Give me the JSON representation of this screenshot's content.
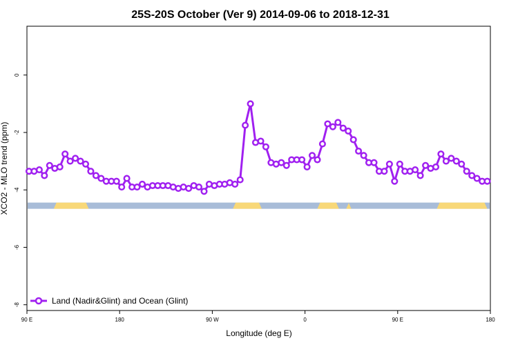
{
  "chart_data": {
    "type": "line",
    "title": "25S-20S October (Ver 9)   2014-09-06 to 2018-12-31",
    "xlabel": "Longitude (deg E)",
    "ylabel": "XCO2 - MLO trend (ppm)",
    "x_tick_labels": [
      "90 E",
      "180",
      "90 W",
      "0",
      "90 E",
      "180"
    ],
    "y_tick_labels": [
      "0",
      "-2",
      "-4",
      "-6",
      "-8"
    ],
    "y_ticks": [
      0,
      -2,
      -4,
      -6,
      -8
    ],
    "x_ticks": [
      90,
      180,
      270,
      360,
      450,
      540
    ],
    "xlim": [
      90,
      540
    ],
    "ylim": [
      -8.2,
      1.7
    ],
    "grid": false,
    "legend_position": "bottom-left",
    "series": [
      {
        "name": "Land (Nadir&Glint) and Ocean (Glint)",
        "color": "#a020f0",
        "x": [
          92,
          97,
          102,
          107,
          112,
          117,
          122,
          127,
          132,
          137,
          142,
          147,
          152,
          157,
          162,
          167,
          172,
          177,
          182,
          187,
          192,
          197,
          202,
          207,
          212,
          217,
          222,
          227,
          232,
          237,
          242,
          247,
          252,
          257,
          262,
          267,
          272,
          277,
          282,
          287,
          292,
          297,
          302,
          307,
          312,
          317,
          322,
          327,
          332,
          337,
          342,
          347,
          352,
          357,
          362,
          367,
          372,
          377,
          382,
          387,
          392,
          397,
          402,
          407,
          412,
          417,
          422,
          427,
          432,
          437,
          442,
          447,
          452,
          457,
          462,
          467,
          472,
          477,
          482,
          487,
          492,
          497,
          502,
          507,
          512,
          517,
          522,
          527,
          532,
          537
        ],
        "y": [
          -3.35,
          -3.35,
          -3.3,
          -3.5,
          -3.15,
          -3.25,
          -3.2,
          -2.75,
          -3.0,
          -2.9,
          -3.0,
          -3.1,
          -3.35,
          -3.5,
          -3.6,
          -3.7,
          -3.7,
          -3.7,
          -3.9,
          -3.6,
          -3.9,
          -3.9,
          -3.8,
          -3.9,
          -3.85,
          -3.85,
          -3.85,
          -3.85,
          -3.9,
          -3.95,
          -3.9,
          -3.95,
          -3.85,
          -3.9,
          -4.05,
          -3.8,
          -3.85,
          -3.8,
          -3.8,
          -3.75,
          -3.8,
          -3.65,
          -1.75,
          -1.0,
          -2.35,
          -2.3,
          -2.5,
          -3.05,
          -3.1,
          -3.05,
          -3.15,
          -2.95,
          -2.95,
          -2.95,
          -3.2,
          -2.8,
          -2.95,
          -2.4,
          -1.7,
          -1.8,
          -1.65,
          -1.85,
          -1.95,
          -2.25,
          -2.65,
          -2.8,
          -3.05,
          -3.05,
          -3.35,
          -3.35,
          -3.1,
          -3.7,
          -3.1,
          -3.35,
          -3.35,
          -3.3,
          -3.5,
          -3.15,
          -3.25,
          -3.2,
          -2.75,
          -3.0,
          -2.9,
          -3.0,
          -3.1,
          -3.35,
          -3.5,
          -3.6,
          -3.7,
          -3.7
        ]
      }
    ],
    "surface_band": {
      "y_center": -4.55,
      "ocean_color": "#a8bcd8",
      "land_color": "#f8d878",
      "land_segments": [
        [
          116,
          150
        ],
        [
          290,
          318
        ],
        [
          372,
          393
        ],
        [
          400,
          405
        ],
        [
          488,
          537
        ]
      ]
    }
  }
}
